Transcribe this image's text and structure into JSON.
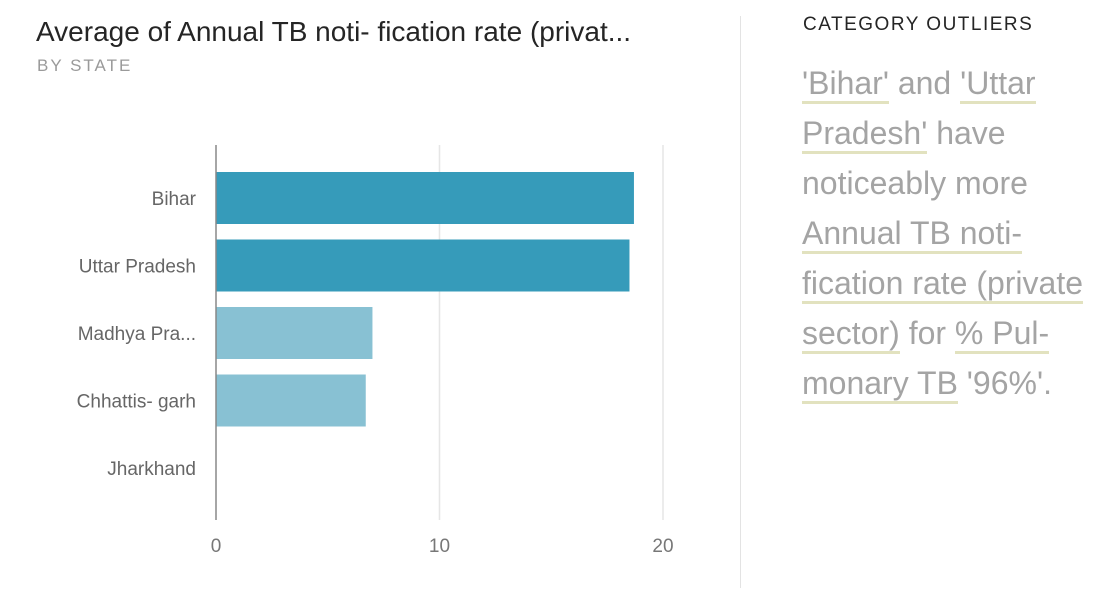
{
  "header": {
    "title": "Average of Annual TB noti- fication rate (privat...",
    "subtitle": "BY STATE"
  },
  "chart_data": {
    "type": "bar",
    "orientation": "horizontal",
    "categories": [
      "Bihar",
      "Uttar Pradesh",
      "Madhya Pra...",
      "Chhattis- garh",
      "Jharkhand"
    ],
    "values": [
      18.7,
      18.5,
      7.0,
      6.7,
      0
    ],
    "highlighted": [
      true,
      true,
      false,
      false,
      false
    ],
    "xticks": [
      "0",
      "10",
      "20"
    ],
    "xlim": [
      0,
      20
    ],
    "grid": true,
    "colors": {
      "highlight": "#369bba",
      "normal": "#88c1d3"
    }
  },
  "panel": {
    "heading": "CATEGORY OUTLIERS",
    "insight": [
      {
        "text": "'Bihar'",
        "hl": true
      },
      {
        "text": " and ",
        "hl": false
      },
      {
        "text": "'Uttar Pradesh'",
        "hl": true
      },
      {
        "text": " have noticeably more ",
        "hl": false
      },
      {
        "text": "Annual TB noti- fication rate (private sector)",
        "hl": true
      },
      {
        "text": " for ",
        "hl": false
      },
      {
        "text": "% Pul- monary TB",
        "hl": true
      },
      {
        "text": " '96%'.",
        "hl": false
      }
    ]
  }
}
